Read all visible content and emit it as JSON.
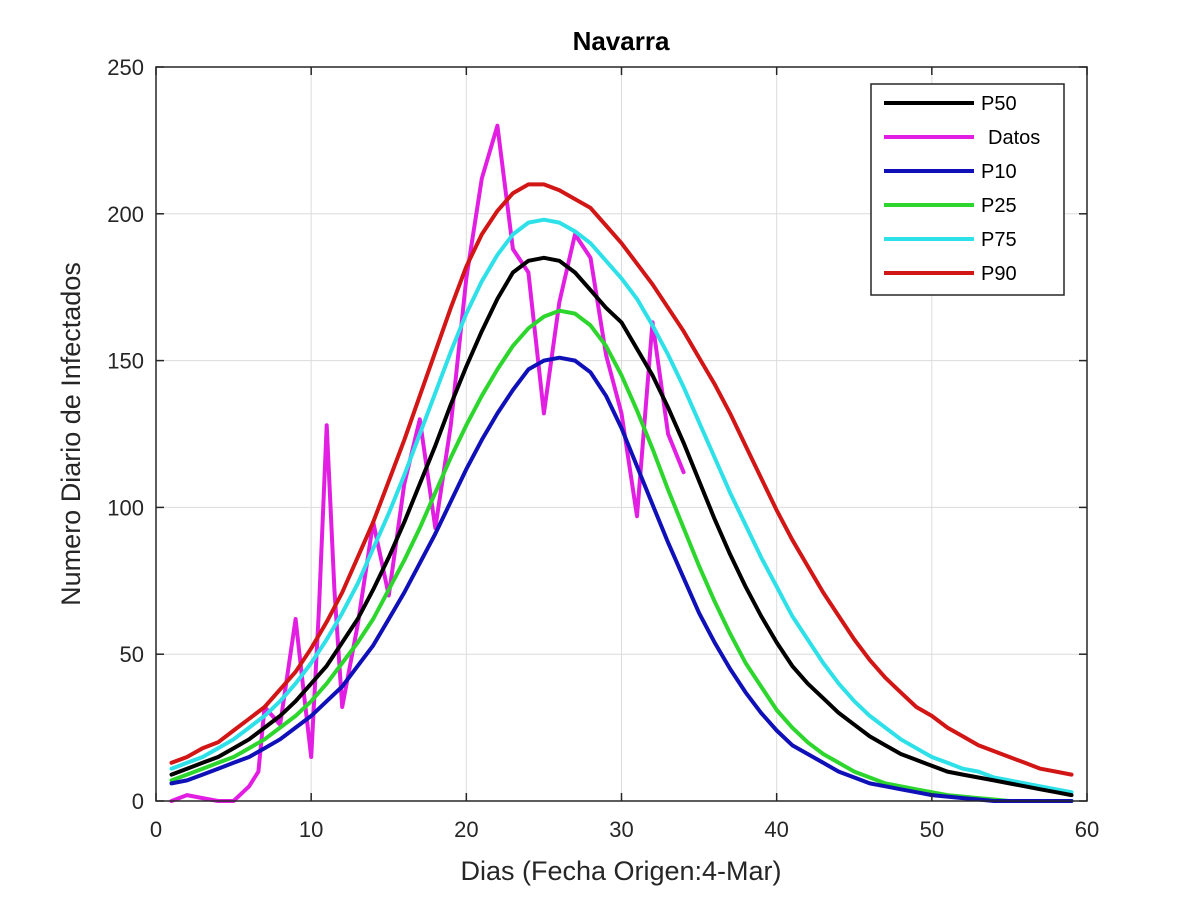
{
  "chart_data": {
    "type": "line",
    "title": "Navarra",
    "xlabel": "Dias (Fecha Origen:4-Mar)",
    "ylabel": "Numero Diario de Infectados",
    "xlim": [
      0,
      60
    ],
    "ylim": [
      0,
      250
    ],
    "xticks": [
      "0",
      "10",
      "20",
      "30",
      "40",
      "50",
      "60"
    ],
    "yticks": [
      "0",
      "50",
      "100",
      "150",
      "200",
      "250"
    ],
    "grid": true,
    "legend_position": "top-right",
    "series": [
      {
        "name": "P50",
        "color": "#000000",
        "points": [
          [
            1,
            9
          ],
          [
            2,
            11
          ],
          [
            3,
            13
          ],
          [
            4,
            15
          ],
          [
            5,
            18
          ],
          [
            6,
            21
          ],
          [
            7,
            25
          ],
          [
            8,
            29
          ],
          [
            9,
            34
          ],
          [
            10,
            40
          ],
          [
            11,
            46
          ],
          [
            12,
            54
          ],
          [
            13,
            62
          ],
          [
            14,
            72
          ],
          [
            15,
            83
          ],
          [
            16,
            95
          ],
          [
            17,
            108
          ],
          [
            18,
            121
          ],
          [
            19,
            135
          ],
          [
            20,
            148
          ],
          [
            21,
            160
          ],
          [
            22,
            171
          ],
          [
            23,
            180
          ],
          [
            24,
            184
          ],
          [
            25,
            185
          ],
          [
            26,
            184
          ],
          [
            27,
            180
          ],
          [
            28,
            174
          ],
          [
            29,
            168
          ],
          [
            30,
            163
          ],
          [
            31,
            154
          ],
          [
            32,
            145
          ],
          [
            33,
            134
          ],
          [
            34,
            122
          ],
          [
            35,
            109
          ],
          [
            36,
            96
          ],
          [
            37,
            84
          ],
          [
            38,
            73
          ],
          [
            39,
            63
          ],
          [
            40,
            54
          ],
          [
            41,
            46
          ],
          [
            42,
            40
          ],
          [
            43,
            35
          ],
          [
            44,
            30
          ],
          [
            45,
            26
          ],
          [
            46,
            22
          ],
          [
            47,
            19
          ],
          [
            48,
            16
          ],
          [
            49,
            14
          ],
          [
            50,
            12
          ],
          [
            51,
            10
          ],
          [
            52,
            9
          ],
          [
            53,
            8
          ],
          [
            54,
            7
          ],
          [
            55,
            6
          ],
          [
            56,
            5
          ],
          [
            57,
            4
          ],
          [
            58,
            3
          ],
          [
            59,
            2
          ]
        ]
      },
      {
        "name": "Datos",
        "color": "#e21ee2",
        "points": [
          [
            1,
            0
          ],
          [
            2,
            2
          ],
          [
            3,
            1
          ],
          [
            4,
            0
          ],
          [
            5,
            0
          ],
          [
            6,
            5
          ],
          [
            6.6,
            10
          ],
          [
            7,
            32
          ],
          [
            8,
            26
          ],
          [
            9,
            62
          ],
          [
            9.5,
            38
          ],
          [
            10,
            15
          ],
          [
            10.5,
            65
          ],
          [
            11,
            128
          ],
          [
            11.5,
            72
          ],
          [
            12,
            32
          ],
          [
            13,
            60
          ],
          [
            14,
            95
          ],
          [
            15,
            70
          ],
          [
            16,
            108
          ],
          [
            17,
            130
          ],
          [
            18,
            93
          ],
          [
            19,
            128
          ],
          [
            20,
            178
          ],
          [
            21,
            212
          ],
          [
            22,
            230
          ],
          [
            23,
            188
          ],
          [
            24,
            180
          ],
          [
            25,
            132
          ],
          [
            26,
            170
          ],
          [
            27,
            193
          ],
          [
            28,
            185
          ],
          [
            29,
            152
          ],
          [
            30,
            132
          ],
          [
            31,
            97
          ],
          [
            32,
            163
          ],
          [
            33,
            125
          ],
          [
            34,
            112
          ]
        ]
      },
      {
        "name": "P10",
        "color": "#1010b8",
        "points": [
          [
            1,
            6
          ],
          [
            2,
            7
          ],
          [
            3,
            9
          ],
          [
            4,
            11
          ],
          [
            5,
            13
          ],
          [
            6,
            15
          ],
          [
            7,
            18
          ],
          [
            8,
            21
          ],
          [
            9,
            25
          ],
          [
            10,
            29
          ],
          [
            11,
            34
          ],
          [
            12,
            39
          ],
          [
            13,
            46
          ],
          [
            14,
            53
          ],
          [
            15,
            62
          ],
          [
            16,
            71
          ],
          [
            17,
            81
          ],
          [
            18,
            91
          ],
          [
            19,
            102
          ],
          [
            20,
            113
          ],
          [
            21,
            123
          ],
          [
            22,
            132
          ],
          [
            23,
            140
          ],
          [
            24,
            147
          ],
          [
            25,
            150
          ],
          [
            26,
            151
          ],
          [
            27,
            150
          ],
          [
            28,
            146
          ],
          [
            29,
            138
          ],
          [
            30,
            127
          ],
          [
            31,
            114
          ],
          [
            32,
            101
          ],
          [
            33,
            88
          ],
          [
            34,
            76
          ],
          [
            35,
            64
          ],
          [
            36,
            54
          ],
          [
            37,
            45
          ],
          [
            38,
            37
          ],
          [
            39,
            30
          ],
          [
            40,
            24
          ],
          [
            41,
            19
          ],
          [
            42,
            16
          ],
          [
            43,
            13
          ],
          [
            44,
            10
          ],
          [
            45,
            8
          ],
          [
            46,
            6
          ],
          [
            47,
            5
          ],
          [
            48,
            4
          ],
          [
            49,
            3
          ],
          [
            50,
            2
          ],
          [
            51,
            1.5
          ],
          [
            52,
            1
          ],
          [
            53,
            0.5
          ],
          [
            54,
            0
          ],
          [
            55,
            0
          ],
          [
            56,
            0
          ],
          [
            57,
            0
          ],
          [
            58,
            0
          ],
          [
            59,
            0
          ]
        ]
      },
      {
        "name": "P25",
        "color": "#2dd62d",
        "points": [
          [
            1,
            7
          ],
          [
            2,
            9
          ],
          [
            3,
            11
          ],
          [
            4,
            13
          ],
          [
            5,
            15
          ],
          [
            6,
            18
          ],
          [
            7,
            21
          ],
          [
            8,
            25
          ],
          [
            9,
            29
          ],
          [
            10,
            34
          ],
          [
            11,
            40
          ],
          [
            12,
            47
          ],
          [
            13,
            54
          ],
          [
            14,
            62
          ],
          [
            15,
            72
          ],
          [
            16,
            82
          ],
          [
            17,
            93
          ],
          [
            18,
            105
          ],
          [
            19,
            117
          ],
          [
            20,
            128
          ],
          [
            21,
            138
          ],
          [
            22,
            147
          ],
          [
            23,
            155
          ],
          [
            24,
            161
          ],
          [
            25,
            165
          ],
          [
            26,
            167
          ],
          [
            27,
            166
          ],
          [
            28,
            162
          ],
          [
            29,
            155
          ],
          [
            30,
            145
          ],
          [
            31,
            133
          ],
          [
            32,
            120
          ],
          [
            33,
            106
          ],
          [
            34,
            93
          ],
          [
            35,
            80
          ],
          [
            36,
            68
          ],
          [
            37,
            57
          ],
          [
            38,
            47
          ],
          [
            39,
            39
          ],
          [
            40,
            31
          ],
          [
            41,
            25
          ],
          [
            42,
            20
          ],
          [
            43,
            16
          ],
          [
            44,
            13
          ],
          [
            45,
            10
          ],
          [
            46,
            8
          ],
          [
            47,
            6
          ],
          [
            48,
            5
          ],
          [
            49,
            4
          ],
          [
            50,
            3
          ],
          [
            51,
            2
          ],
          [
            52,
            1.5
          ],
          [
            53,
            1
          ],
          [
            54,
            0.5
          ],
          [
            55,
            0
          ],
          [
            56,
            0
          ],
          [
            57,
            0
          ],
          [
            58,
            0
          ],
          [
            59,
            0
          ]
        ]
      },
      {
        "name": "P75",
        "color": "#2ee0e8",
        "points": [
          [
            1,
            11
          ],
          [
            2,
            13
          ],
          [
            3,
            15
          ],
          [
            4,
            18
          ],
          [
            5,
            21
          ],
          [
            6,
            25
          ],
          [
            7,
            29
          ],
          [
            8,
            34
          ],
          [
            9,
            40
          ],
          [
            10,
            47
          ],
          [
            11,
            55
          ],
          [
            12,
            64
          ],
          [
            13,
            74
          ],
          [
            14,
            86
          ],
          [
            15,
            98
          ],
          [
            16,
            111
          ],
          [
            17,
            125
          ],
          [
            18,
            139
          ],
          [
            19,
            153
          ],
          [
            20,
            166
          ],
          [
            21,
            177
          ],
          [
            22,
            186
          ],
          [
            23,
            193
          ],
          [
            24,
            197
          ],
          [
            25,
            198
          ],
          [
            26,
            197
          ],
          [
            27,
            194
          ],
          [
            28,
            190
          ],
          [
            29,
            184
          ],
          [
            30,
            178
          ],
          [
            31,
            171
          ],
          [
            32,
            162
          ],
          [
            33,
            152
          ],
          [
            34,
            141
          ],
          [
            35,
            129
          ],
          [
            36,
            117
          ],
          [
            37,
            105
          ],
          [
            38,
            94
          ],
          [
            39,
            83
          ],
          [
            40,
            73
          ],
          [
            41,
            63
          ],
          [
            42,
            55
          ],
          [
            43,
            47
          ],
          [
            44,
            40
          ],
          [
            45,
            34
          ],
          [
            46,
            29
          ],
          [
            47,
            25
          ],
          [
            48,
            21
          ],
          [
            49,
            18
          ],
          [
            50,
            15
          ],
          [
            51,
            13
          ],
          [
            52,
            11
          ],
          [
            53,
            10
          ],
          [
            54,
            8
          ],
          [
            55,
            7
          ],
          [
            56,
            6
          ],
          [
            57,
            5
          ],
          [
            58,
            4
          ],
          [
            59,
            3
          ]
        ]
      },
      {
        "name": "P90",
        "color": "#d21515",
        "points": [
          [
            1,
            13
          ],
          [
            2,
            15
          ],
          [
            3,
            18
          ],
          [
            4,
            20
          ],
          [
            5,
            24
          ],
          [
            6,
            28
          ],
          [
            7,
            32
          ],
          [
            8,
            38
          ],
          [
            9,
            44
          ],
          [
            10,
            52
          ],
          [
            11,
            61
          ],
          [
            12,
            71
          ],
          [
            13,
            83
          ],
          [
            14,
            95
          ],
          [
            15,
            109
          ],
          [
            16,
            123
          ],
          [
            17,
            138
          ],
          [
            18,
            153
          ],
          [
            19,
            168
          ],
          [
            20,
            182
          ],
          [
            21,
            193
          ],
          [
            22,
            201
          ],
          [
            23,
            207
          ],
          [
            24,
            210
          ],
          [
            25,
            210
          ],
          [
            26,
            208
          ],
          [
            27,
            205
          ],
          [
            28,
            202
          ],
          [
            29,
            196
          ],
          [
            30,
            190
          ],
          [
            31,
            183
          ],
          [
            32,
            176
          ],
          [
            33,
            168
          ],
          [
            34,
            160
          ],
          [
            35,
            151
          ],
          [
            36,
            142
          ],
          [
            37,
            132
          ],
          [
            38,
            121
          ],
          [
            39,
            110
          ],
          [
            40,
            99
          ],
          [
            41,
            89
          ],
          [
            42,
            80
          ],
          [
            43,
            71
          ],
          [
            44,
            63
          ],
          [
            45,
            55
          ],
          [
            46,
            48
          ],
          [
            47,
            42
          ],
          [
            48,
            37
          ],
          [
            49,
            32
          ],
          [
            50,
            29
          ],
          [
            51,
            25
          ],
          [
            52,
            22
          ],
          [
            53,
            19
          ],
          [
            54,
            17
          ],
          [
            55,
            15
          ],
          [
            56,
            13
          ],
          [
            57,
            11
          ],
          [
            58,
            10
          ],
          [
            59,
            9
          ]
        ]
      }
    ]
  }
}
